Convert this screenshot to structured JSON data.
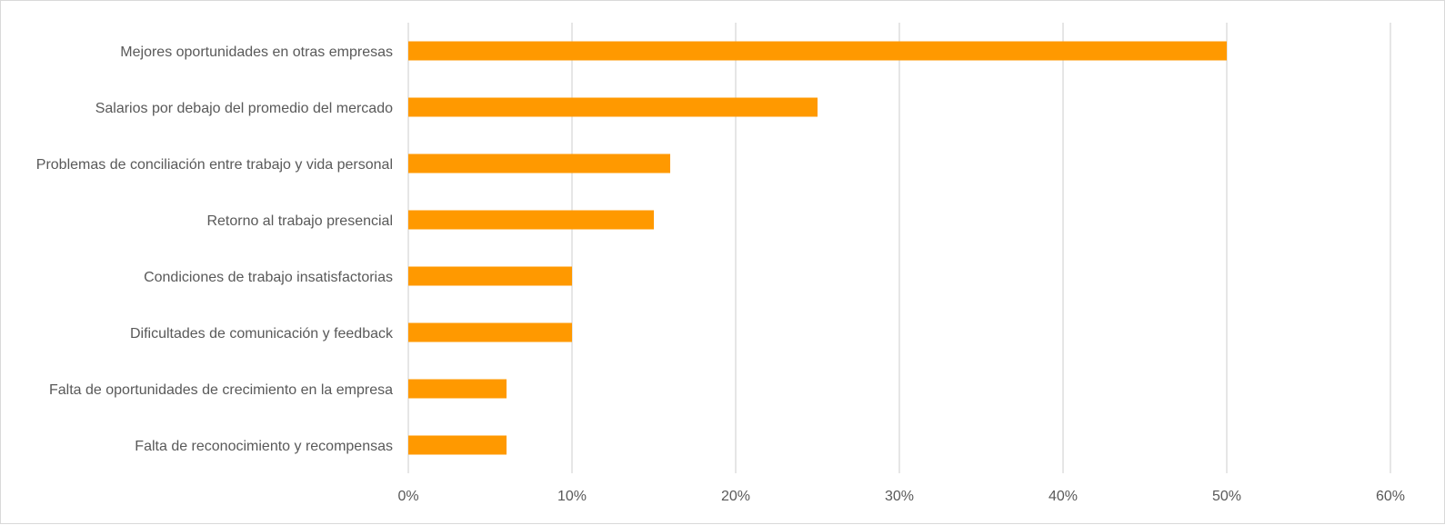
{
  "chart_data": {
    "type": "bar",
    "orientation": "horizontal",
    "categories": [
      "Mejores oportunidades en otras empresas",
      "Salarios por debajo del promedio del mercado",
      "Problemas de conciliación entre trabajo y vida personal",
      "Retorno al trabajo presencial",
      "Condiciones de trabajo insatisfactorias",
      "Dificultades de comunicación y feedback",
      "Falta de oportunidades de crecimiento en la empresa",
      "Falta de reconocimiento y recompensas"
    ],
    "values": [
      50,
      25,
      16,
      15,
      10,
      10,
      6,
      6
    ],
    "xlim": [
      0,
      60
    ],
    "x_ticks": [
      0,
      10,
      20,
      30,
      40,
      50,
      60
    ],
    "x_tick_labels": [
      "0%",
      "10%",
      "20%",
      "30%",
      "40%",
      "50%",
      "60%"
    ],
    "grid": "vertical",
    "legend": "none",
    "bar_color": "#ff9900",
    "gridline_color": "#d9d9d9"
  }
}
